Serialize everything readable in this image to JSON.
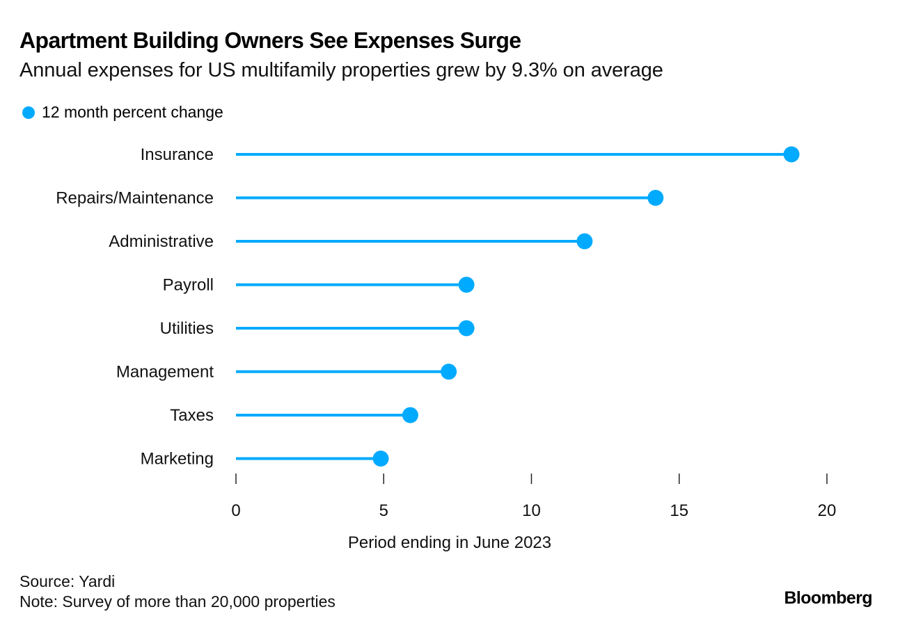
{
  "header": {
    "title": "Apartment Building Owners See Expenses Surge",
    "subtitle": "Annual expenses for US multifamily properties grew by 9.3% on average"
  },
  "legend": {
    "label": "12 month percent change",
    "color": "#00aaff"
  },
  "chart_data": {
    "type": "lollipop",
    "title": "Apartment Building Owners See Expenses Surge",
    "subtitle": "Annual expenses for US multifamily properties grew by 9.3% on average",
    "xlabel": "Period ending in June 2023",
    "ylabel": "",
    "xlim": [
      0,
      20
    ],
    "xticks": [
      0,
      5,
      10,
      15,
      20
    ],
    "xtick_labels": [
      "0",
      "5",
      "10",
      "15",
      "20"
    ],
    "grid": false,
    "legend_position": "top-left",
    "categories": [
      "Insurance",
      "Repairs/Maintenance",
      "Administrative",
      "Payroll",
      "Utilities",
      "Management",
      "Taxes",
      "Marketing"
    ],
    "series": [
      {
        "name": "12 month percent change",
        "color": "#00aaff",
        "values": [
          18.8,
          14.2,
          11.8,
          7.8,
          7.8,
          7.2,
          5.9,
          4.9
        ]
      }
    ]
  },
  "footer": {
    "source": "Source: Yardi",
    "note": "Note: Survey of more than 20,000 properties",
    "brand": "Bloomberg"
  }
}
